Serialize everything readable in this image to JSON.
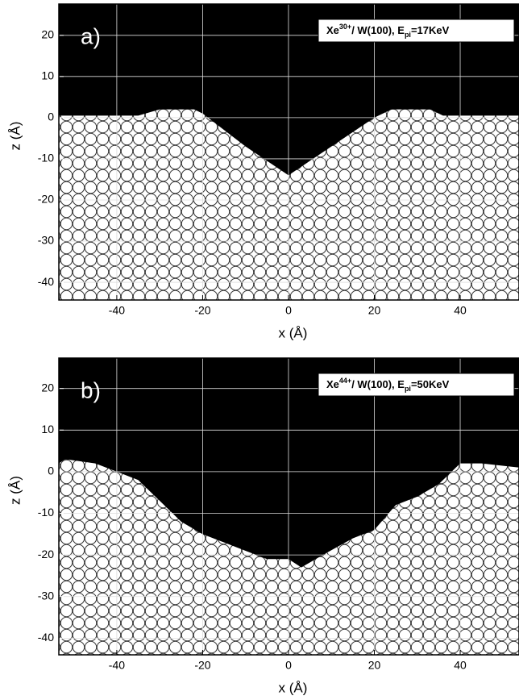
{
  "chart_data": [
    {
      "type": "area",
      "panel_label": "a)",
      "annotation": [
        "Xe",
        "30+",
        "/ W(100), E",
        "pi",
        "=17KeV"
      ],
      "xlabel": "x (Å)",
      "ylabel": "z (Å)",
      "x": [
        -53.5,
        -35,
        -30,
        -22,
        -20,
        -10,
        0,
        10,
        20,
        24,
        33,
        36,
        53.7
      ],
      "values": [
        0.5,
        0.5,
        2,
        2,
        1,
        -7,
        -14,
        -7,
        0,
        2,
        2,
        0.5,
        0.5
      ],
      "xlim": [
        -53.5,
        53.7
      ],
      "ylim": [
        -44.3,
        27.6
      ],
      "xticks": [
        -40,
        -20,
        0,
        20,
        40
      ],
      "yticks": [
        -40,
        -30,
        -20,
        -10,
        0,
        10,
        20
      ],
      "grid": true
    },
    {
      "type": "area",
      "panel_label": "b)",
      "annotation": [
        "Xe",
        "44+",
        "/ W(100), E",
        "pi",
        "=50KeV"
      ],
      "xlabel": "x (Å)",
      "ylabel": "z (Å)",
      "x": [
        -53.5,
        -52,
        -45,
        -40,
        -35,
        -30,
        -25,
        -20,
        -15,
        -10,
        -5,
        0,
        3,
        8,
        15,
        20,
        25,
        30,
        35,
        40,
        45,
        53.7
      ],
      "values": [
        2,
        3,
        2,
        0,
        -2,
        -7,
        -12,
        -15,
        -17,
        -19,
        -21,
        -21,
        -23,
        -20,
        -16,
        -14,
        -8,
        -6,
        -3,
        2,
        2,
        1
      ],
      "xlim": [
        -53.5,
        53.7
      ],
      "ylim": [
        -44,
        27.3
      ],
      "xticks": [
        -40,
        -20,
        0,
        20,
        40
      ],
      "yticks": [
        -40,
        -30,
        -20,
        -10,
        0,
        10,
        20
      ],
      "grid": true
    }
  ]
}
